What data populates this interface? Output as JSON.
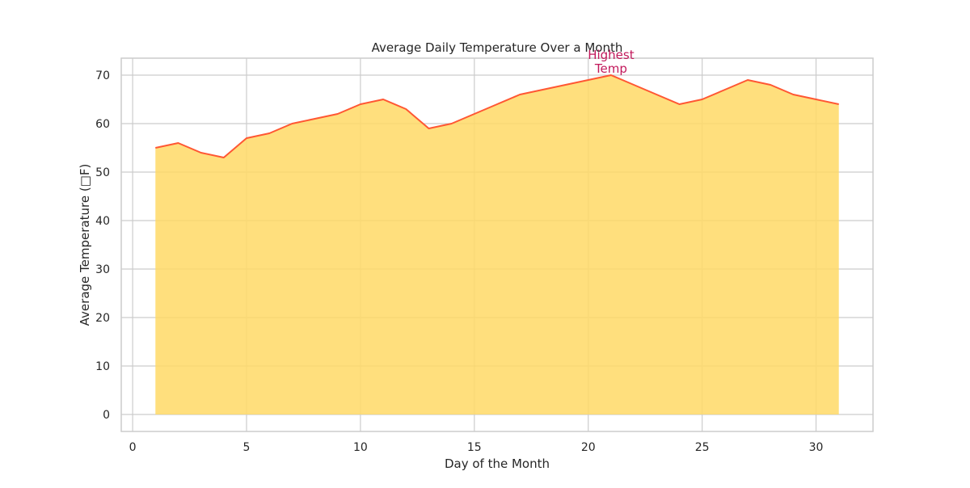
{
  "chart_data": {
    "type": "area",
    "title": "Average Daily Temperature Over a Month",
    "xlabel": "Day of the Month",
    "ylabel": "Average Temperature (□F)",
    "xlim": [
      -0.5,
      32.5
    ],
    "ylim": [
      -3.5,
      73.5
    ],
    "xticks": [
      0,
      5,
      10,
      15,
      20,
      25,
      30
    ],
    "yticks": [
      0,
      10,
      20,
      30,
      40,
      50,
      60,
      70
    ],
    "grid": true,
    "series": [
      {
        "x": [
          1,
          2,
          3,
          4,
          5,
          6,
          7,
          8,
          9,
          10,
          11,
          12,
          13,
          14,
          15,
          16,
          17,
          18,
          19,
          20,
          21,
          22,
          23,
          24,
          25,
          26,
          27,
          28,
          29,
          30,
          31
        ],
        "values": [
          55,
          56,
          54,
          53,
          57,
          58,
          60,
          61,
          62,
          64,
          65,
          63,
          59,
          60,
          62,
          64,
          66,
          67,
          68,
          69,
          70,
          68,
          66,
          64,
          65,
          67,
          69,
          68,
          66,
          65,
          64
        ]
      }
    ],
    "annotation": {
      "lines": [
        "Highest",
        "Temp"
      ],
      "x": 21,
      "y": 70
    },
    "colors": {
      "fill": "#FFD966",
      "line": "#FF5733",
      "annotation": "#C2185B",
      "grid": "#CCCCCC",
      "frame": "#CCCCCC"
    }
  }
}
